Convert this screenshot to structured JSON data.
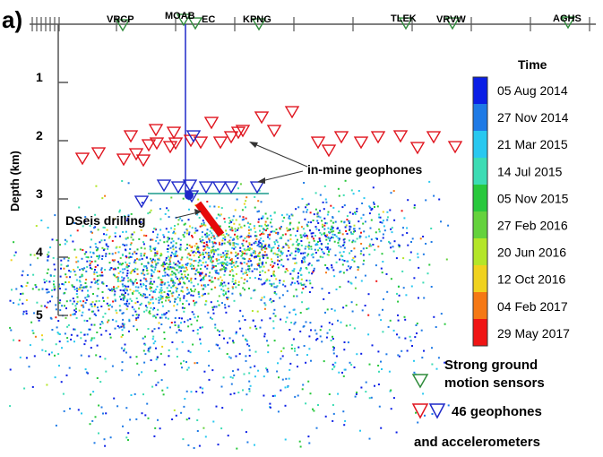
{
  "panel_label": "a)",
  "y_axis": {
    "title": "Depth (km)",
    "ticks": [
      "1",
      "2",
      "3",
      "4",
      "5"
    ]
  },
  "stations": [
    "VRCP",
    "MOAB",
    "EC",
    "KPNG",
    "TLEK",
    "VRVW",
    "AGHS"
  ],
  "annotations": {
    "in_mine": "in-mine geophones",
    "drilling": "DSeis drilling"
  },
  "colorbar": {
    "title": "Time",
    "labels": [
      "05  Aug  2014",
      "27  Nov  2014",
      "21  Mar  2015",
      "14  Jul  2015",
      "05  Nov  2015",
      "27  Feb  2016",
      "20  Jun  2016",
      "12  Oct  2016",
      "04  Feb  2017",
      "29  May  2017"
    ],
    "colors": [
      "#0a1ee6",
      "#1e7ae6",
      "#28c8f0",
      "#3cdcb4",
      "#28c83c",
      "#64d23c",
      "#b4e628",
      "#f0d21e",
      "#f57814",
      "#f01414"
    ]
  },
  "legend": {
    "strong_motion": [
      "Strong ground",
      "motion sensors"
    ],
    "geophones": [
      "46 geophones",
      "and accelerometers"
    ]
  },
  "colors": {
    "surface_station": "#2e8b3a",
    "surface_geophone": "#e0141e",
    "mine_geophone": "#1e28c8",
    "drilling": "#e60a0a",
    "borehole": "#1e28c8",
    "level_line": "#1a9a8c"
  }
}
